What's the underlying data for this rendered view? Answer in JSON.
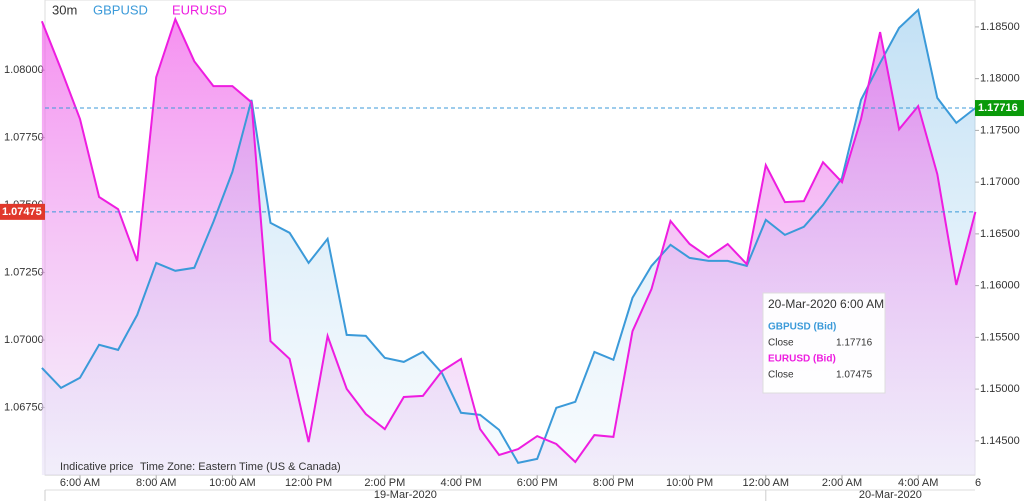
{
  "chart_data": {
    "type": "line",
    "interval": "30m",
    "categories": [
      null,
      null,
      "6:00 AM",
      null,
      null,
      null,
      "8:00 AM",
      null,
      null,
      null,
      "10:00 AM",
      null,
      null,
      null,
      "12:00 PM",
      null,
      null,
      null,
      "2:00 PM",
      null,
      null,
      null,
      "4:00 PM",
      null,
      null,
      null,
      "6:00 PM",
      null,
      null,
      null,
      "8:00 PM",
      null,
      null,
      null,
      "10:00 PM",
      null,
      null,
      null,
      "12:00 AM",
      null,
      null,
      null,
      "2:00 AM",
      null,
      null,
      null,
      "4:00 AM",
      null,
      null,
      null
    ],
    "x_edge_label": "6",
    "date_labels": [
      "19-Mar-2020",
      "20-Mar-2020"
    ],
    "series": [
      {
        "name": "GBPUSD",
        "color": "#3b9ad9",
        "axis": "y2",
        "values": [
          1.15205,
          1.15012,
          1.15109,
          1.15428,
          1.15379,
          1.15717,
          1.1622,
          1.16143,
          1.16172,
          1.16616,
          1.17099,
          1.17795,
          1.16606,
          1.1651,
          1.1622,
          1.16452,
          1.15524,
          1.15514,
          1.15302,
          1.15263,
          1.1536,
          1.15157,
          1.14771,
          1.14751,
          1.14606,
          1.14287,
          1.14326,
          1.14819,
          1.14877,
          1.1536,
          1.15283,
          1.15882,
          1.16191,
          1.16394,
          1.16268,
          1.16239,
          1.16239,
          1.16191,
          1.16635,
          1.1649,
          1.16568,
          1.1678,
          1.17041,
          1.17795,
          1.18152,
          1.1849,
          1.18664,
          1.17814,
          1.17572,
          1.17716
        ]
      },
      {
        "name": "EURUSD",
        "color": "#ee1de0",
        "axis": "y",
        "values": [
          1.08181,
          1.08004,
          1.07819,
          1.0753,
          1.07485,
          1.07293,
          1.07974,
          1.08189,
          1.08033,
          1.07941,
          1.07941,
          1.07881,
          1.06996,
          1.0693,
          1.06622,
          1.07015,
          1.06819,
          1.06726,
          1.0667,
          1.06789,
          1.06793,
          1.06885,
          1.0693,
          1.0667,
          1.06574,
          1.06596,
          1.06644,
          1.06615,
          1.06548,
          1.06648,
          1.06641,
          1.07033,
          1.07189,
          1.07441,
          1.07356,
          1.07307,
          1.07356,
          1.07281,
          1.07648,
          1.07511,
          1.07515,
          1.07659,
          1.07585,
          1.07819,
          1.08141,
          1.07781,
          1.07867,
          1.07615,
          1.07204,
          1.07475
        ]
      }
    ],
    "ylim": [
      1.065,
      1.0826
    ],
    "yticks": [
      {
        "value": 1.0675,
        "label": "1.06750"
      },
      {
        "value": 1.07,
        "label": "1.07000"
      },
      {
        "value": 1.0725,
        "label": "1.07250"
      },
      {
        "value": 1.075,
        "label": "1.07500"
      },
      {
        "value": 1.0775,
        "label": "1.07750"
      },
      {
        "value": 1.08,
        "label": "1.08000"
      }
    ],
    "y2lim": [
      1.1417,
      1.1876
    ],
    "y2ticks": [
      {
        "value": 1.145,
        "label": "1.14500"
      },
      {
        "value": 1.15,
        "label": "1.15000"
      },
      {
        "value": 1.155,
        "label": "1.15500"
      },
      {
        "value": 1.16,
        "label": "1.16000"
      },
      {
        "value": 1.165,
        "label": "1.16500"
      },
      {
        "value": 1.17,
        "label": "1.17000"
      },
      {
        "value": 1.175,
        "label": "1.17500"
      },
      {
        "value": 1.18,
        "label": "1.18000"
      },
      {
        "value": 1.185,
        "label": "1.18500"
      }
    ],
    "last_label_colors": [
      "#0a9a0a",
      "#e0382b"
    ],
    "notes": [
      "Indicative price",
      "Time Zone: Eastern Time (US & Canada)"
    ],
    "tooltip": {
      "title": "20-Mar-2020 6:00 AM",
      "entries": [
        {
          "name": "GBPUSD (Bid)",
          "label": "Close"
        },
        {
          "name": "EURUSD (Bid)",
          "label": "Close"
        }
      ]
    }
  }
}
